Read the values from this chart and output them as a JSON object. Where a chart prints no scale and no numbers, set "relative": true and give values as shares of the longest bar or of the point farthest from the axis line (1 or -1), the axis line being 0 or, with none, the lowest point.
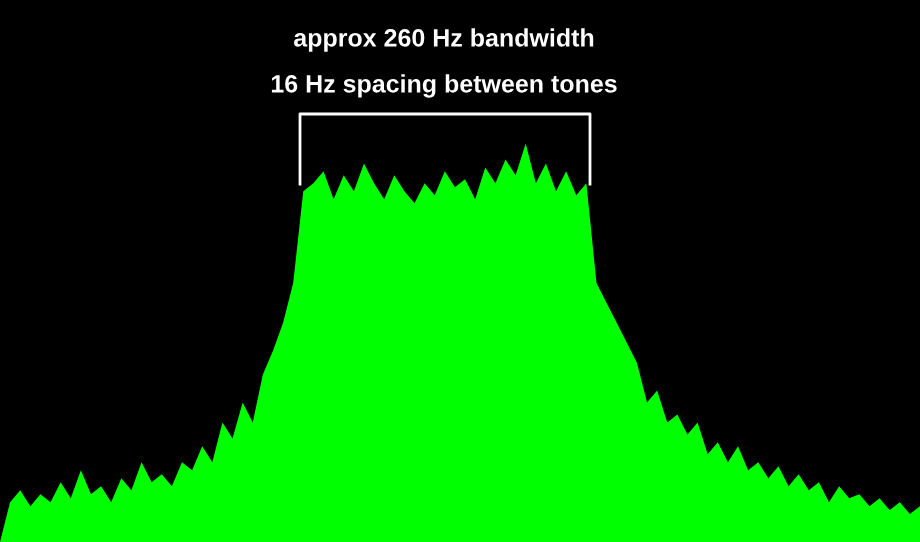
{
  "chart_data": {
    "type": "area",
    "relative": true,
    "categories": [
      null,
      null,
      null,
      null,
      null,
      null,
      null,
      null,
      null,
      null,
      null,
      null,
      null,
      null,
      null,
      null,
      null,
      null,
      null,
      null,
      null,
      null,
      null,
      null,
      null,
      null,
      null,
      null,
      null,
      null,
      null,
      null,
      null,
      null,
      null,
      null,
      null,
      null,
      null,
      null,
      null,
      null,
      null,
      null,
      null,
      null,
      null,
      null,
      null,
      null,
      null,
      null,
      null,
      null,
      null,
      null,
      null,
      null,
      null,
      null,
      null,
      null,
      null,
      null,
      null,
      null,
      null,
      null,
      null,
      null,
      null,
      null,
      null,
      null,
      null,
      null,
      null,
      null,
      null,
      null,
      null,
      null,
      null,
      null,
      null,
      null,
      null,
      null,
      null,
      null,
      null,
      null
    ],
    "series": [
      {
        "color": "#00ff00",
        "values": [
          0.0,
          0.1,
          0.13,
          0.09,
          0.12,
          0.1,
          0.15,
          0.11,
          0.18,
          0.12,
          0.14,
          0.1,
          0.16,
          0.13,
          0.2,
          0.15,
          0.17,
          0.14,
          0.2,
          0.18,
          0.24,
          0.2,
          0.3,
          0.26,
          0.35,
          0.3,
          0.42,
          0.48,
          0.55,
          0.65,
          0.88,
          0.9,
          0.93,
          0.86,
          0.92,
          0.88,
          0.95,
          0.9,
          0.86,
          0.92,
          0.88,
          0.85,
          0.9,
          0.87,
          0.93,
          0.89,
          0.91,
          0.86,
          0.94,
          0.9,
          0.96,
          0.92,
          1.0,
          0.9,
          0.95,
          0.88,
          0.93,
          0.87,
          0.9,
          0.65,
          0.6,
          0.55,
          0.5,
          0.45,
          0.35,
          0.38,
          0.3,
          0.32,
          0.27,
          0.3,
          0.22,
          0.25,
          0.2,
          0.24,
          0.18,
          0.2,
          0.16,
          0.19,
          0.14,
          0.17,
          0.13,
          0.15,
          0.1,
          0.14,
          0.11,
          0.12,
          0.09,
          0.11,
          0.08,
          0.1,
          0.07,
          0.09
        ]
      }
    ],
    "annotations": [
      "approx 260 Hz bandwidth",
      "16 Hz spacing between tones"
    ]
  }
}
